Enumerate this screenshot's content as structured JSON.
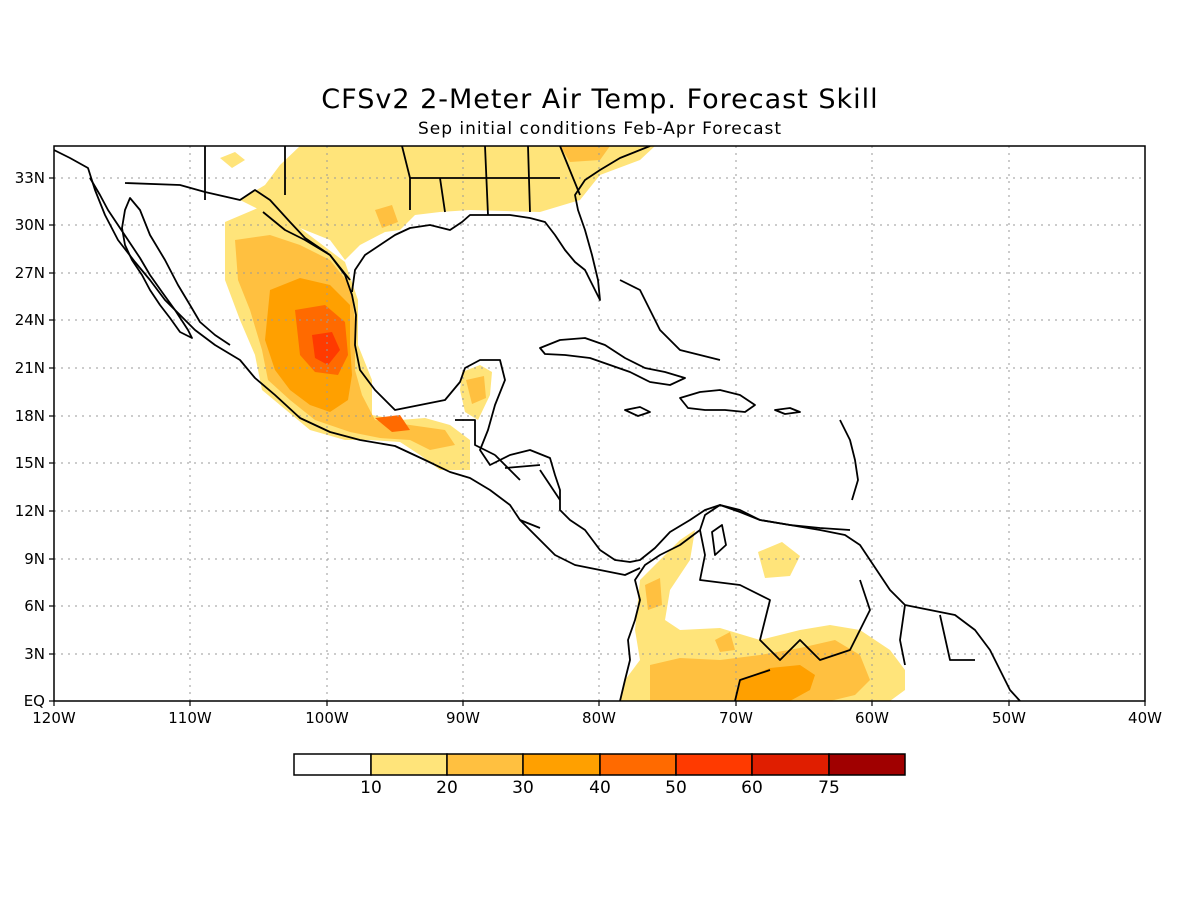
{
  "title": "CFSv2 2-Meter Air Temp. Forecast Skill",
  "subtitle": "Sep initial conditions  Feb-Apr Forecast",
  "map": {
    "lon_range": [
      -120,
      -40
    ],
    "lat_range": [
      0,
      35
    ],
    "lon_ticks": [
      "120W",
      "110W",
      "100W",
      "90W",
      "80W",
      "70W",
      "60W",
      "50W",
      "40W"
    ],
    "lat_ticks": [
      "EQ",
      "3N",
      "6N",
      "9N",
      "12N",
      "15N",
      "18N",
      "21N",
      "24N",
      "27N",
      "30N",
      "33N"
    ],
    "grid": "dotted"
  },
  "colorbar": {
    "colors": [
      "#ffffff",
      "#ffe47a",
      "#ffc040",
      "#ffa000",
      "#ff6a00",
      "#ff3a00",
      "#e01e00",
      "#a00000"
    ],
    "labels": [
      "10",
      "20",
      "30",
      "40",
      "50",
      "60",
      "75"
    ]
  }
}
